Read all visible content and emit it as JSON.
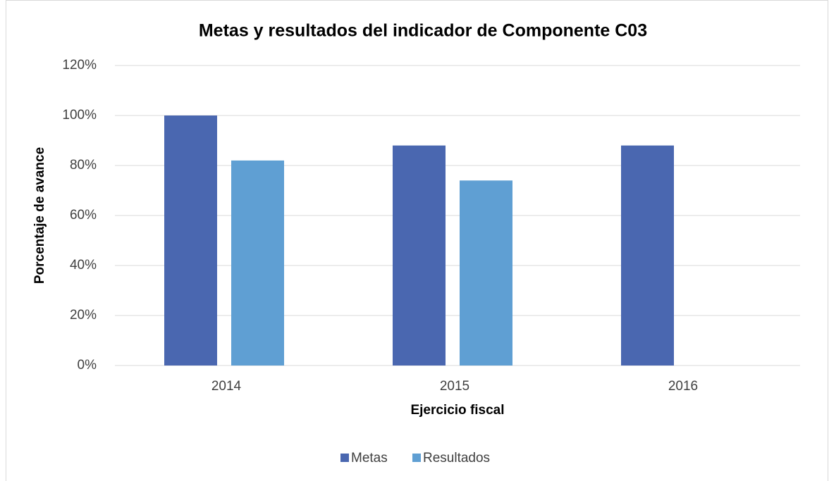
{
  "chart_data": {
    "type": "bar",
    "title": "Metas y resultados del indicador de Componente C03",
    "x_label": "Ejercicio fiscal",
    "y_label": "Porcentaje de avance",
    "categories": [
      "2014",
      "2015",
      "2016"
    ],
    "series": [
      {
        "name": "Metas",
        "color": "#4a67b0",
        "values": [
          100,
          88,
          88
        ]
      },
      {
        "name": "Resultados",
        "color": "#5f9fd3",
        "values": [
          82,
          74,
          null
        ]
      }
    ],
    "ylim": [
      0,
      120
    ],
    "yticks": [
      {
        "value": 0,
        "label": "0%"
      },
      {
        "value": 20,
        "label": "20%"
      },
      {
        "value": 40,
        "label": "40%"
      },
      {
        "value": 60,
        "label": "60%"
      },
      {
        "value": 80,
        "label": "80%"
      },
      {
        "value": 100,
        "label": "100%"
      },
      {
        "value": 120,
        "label": "120%"
      }
    ],
    "grid": true,
    "legend": "bottom"
  }
}
